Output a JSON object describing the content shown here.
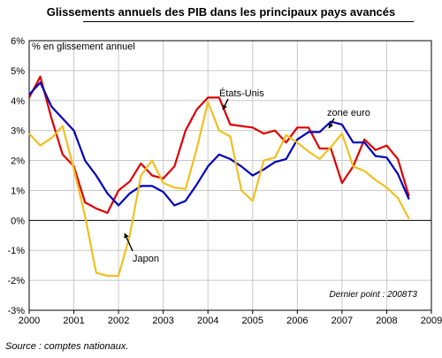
{
  "chart_data": {
    "type": "line",
    "title": "Glissements annuels des PIB dans les principaux pays avancés",
    "ylabel": "% en glissement annuel",
    "xlabel": "",
    "ylim": [
      -3,
      6
    ],
    "xlim": [
      2000,
      2009
    ],
    "y_ticks": [
      "-3%",
      "-2%",
      "-1%",
      "0%",
      "1%",
      "2%",
      "3%",
      "4%",
      "5%",
      "6%"
    ],
    "x_ticks": [
      "2000",
      "2001",
      "2002",
      "2003",
      "2004",
      "2005",
      "2006",
      "2007",
      "2008",
      "2009"
    ],
    "grid": true,
    "annotation": "Dernier point : 2008T3",
    "series": [
      {
        "name": "États-Unis",
        "color": "#dd0000",
        "x": [
          2000,
          2000.25,
          2000.5,
          2000.75,
          2001,
          2001.25,
          2001.5,
          2001.75,
          2002,
          2002.25,
          2002.5,
          2002.75,
          2003,
          2003.25,
          2003.5,
          2003.75,
          2004,
          2004.25,
          2004.5,
          2004.75,
          2005,
          2005.25,
          2005.5,
          2005.75,
          2006,
          2006.25,
          2006.5,
          2006.75,
          2007,
          2007.25,
          2007.5,
          2007.75,
          2008,
          2008.25,
          2008.5
        ],
        "values": [
          4.1,
          4.8,
          3.4,
          2.2,
          1.8,
          0.6,
          0.4,
          0.25,
          1.0,
          1.3,
          1.9,
          1.5,
          1.4,
          1.8,
          3.0,
          3.7,
          4.1,
          4.1,
          3.2,
          3.15,
          3.1,
          2.9,
          3.0,
          2.6,
          3.1,
          3.1,
          2.4,
          2.4,
          1.25,
          1.8,
          2.7,
          2.35,
          2.5,
          2.05,
          0.8
        ]
      },
      {
        "name": "zone euro",
        "color": "#0000bb",
        "x": [
          2000,
          2000.25,
          2000.5,
          2000.75,
          2001,
          2001.25,
          2001.5,
          2001.75,
          2002,
          2002.25,
          2002.5,
          2002.75,
          2003,
          2003.25,
          2003.5,
          2003.75,
          2004,
          2004.25,
          2004.5,
          2004.75,
          2005,
          2005.25,
          2005.5,
          2005.75,
          2006,
          2006.25,
          2006.5,
          2006.75,
          2007,
          2007.25,
          2007.5,
          2007.75,
          2008,
          2008.25,
          2008.5
        ],
        "values": [
          4.2,
          4.6,
          3.8,
          3.4,
          3.0,
          2.0,
          1.5,
          0.9,
          0.5,
          0.9,
          1.15,
          1.15,
          0.95,
          0.5,
          0.65,
          1.2,
          1.8,
          2.2,
          2.05,
          1.8,
          1.5,
          1.7,
          1.95,
          2.05,
          2.7,
          2.95,
          2.95,
          3.3,
          3.2,
          2.6,
          2.6,
          2.15,
          2.1,
          1.55,
          0.7
        ]
      },
      {
        "name": "Japon",
        "color": "#f0c020",
        "x": [
          2000,
          2000.25,
          2000.5,
          2000.75,
          2001,
          2001.25,
          2001.5,
          2001.75,
          2002,
          2002.25,
          2002.5,
          2002.75,
          2003,
          2003.25,
          2003.5,
          2003.75,
          2004,
          2004.25,
          2004.5,
          2004.75,
          2005,
          2005.25,
          2005.5,
          2005.75,
          2006,
          2006.25,
          2006.5,
          2006.75,
          2007,
          2007.25,
          2007.5,
          2007.75,
          2008,
          2008.25,
          2008.5
        ],
        "values": [
          2.9,
          2.5,
          2.75,
          3.15,
          1.7,
          0.15,
          -1.75,
          -1.85,
          -1.85,
          -0.5,
          1.5,
          2.0,
          1.25,
          1.1,
          1.05,
          2.4,
          3.95,
          3.0,
          2.8,
          1.0,
          0.65,
          2.0,
          2.1,
          2.85,
          2.6,
          2.3,
          2.05,
          2.45,
          2.9,
          1.8,
          1.65,
          1.35,
          1.1,
          0.75,
          0.05
        ]
      }
    ],
    "labels": [
      {
        "text": "États-Unis",
        "series": "États-Unis"
      },
      {
        "text": "zone euro",
        "series": "zone euro"
      },
      {
        "text": "Japon",
        "series": "Japon"
      }
    ]
  },
  "source": "Source : comptes nationaux."
}
